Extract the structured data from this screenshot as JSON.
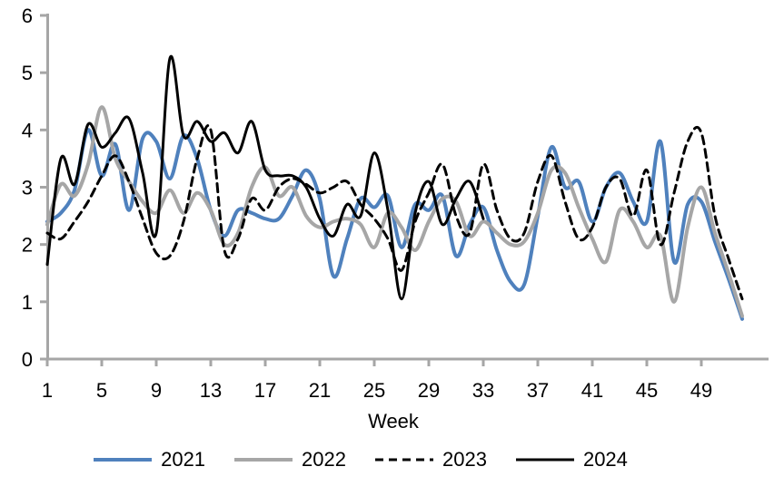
{
  "chart_data": {
    "type": "line",
    "title": "",
    "xlabel": "Week",
    "ylabel": "",
    "xlim": [
      1,
      52
    ],
    "ylim": [
      0,
      6
    ],
    "x_ticks": [
      1,
      5,
      9,
      13,
      17,
      21,
      25,
      29,
      33,
      37,
      41,
      45,
      49
    ],
    "y_ticks": [
      0,
      1,
      2,
      3,
      4,
      5,
      6
    ],
    "grid": false,
    "legend_position": "bottom",
    "axis_color": "#A6A6A6",
    "text_color": "#000000",
    "x": [
      1,
      2,
      3,
      4,
      5,
      6,
      7,
      8,
      9,
      10,
      11,
      12,
      13,
      14,
      15,
      16,
      17,
      18,
      19,
      20,
      21,
      22,
      23,
      24,
      25,
      26,
      27,
      28,
      29,
      30,
      31,
      32,
      33,
      34,
      35,
      36,
      37,
      38,
      39,
      40,
      41,
      42,
      43,
      44,
      45,
      46,
      47,
      48,
      49,
      50,
      51,
      52
    ],
    "series": [
      {
        "name": "2021",
        "color": "#4F81BD",
        "style": "solid",
        "thickness": 4,
        "values": [
          2.4,
          2.55,
          2.95,
          4.0,
          3.2,
          3.75,
          2.6,
          3.85,
          3.8,
          3.15,
          3.9,
          3.5,
          2.6,
          2.15,
          2.6,
          2.55,
          2.45,
          2.45,
          2.85,
          3.3,
          2.8,
          1.45,
          2.1,
          2.8,
          2.65,
          2.85,
          1.95,
          2.7,
          2.6,
          2.85,
          1.8,
          2.35,
          2.65,
          1.9,
          1.35,
          1.3,
          2.5,
          3.7,
          3.0,
          3.1,
          2.4,
          3.0,
          3.25,
          2.75,
          2.4,
          3.8,
          1.7,
          2.7,
          2.75,
          2.05,
          1.4,
          0.7
        ]
      },
      {
        "name": "2022",
        "color": "#A6A6A6",
        "style": "solid",
        "thickness": 4,
        "values": [
          2.35,
          3.05,
          2.85,
          3.4,
          4.4,
          3.5,
          3.1,
          2.75,
          2.55,
          2.95,
          2.55,
          2.9,
          2.6,
          2.0,
          2.2,
          3.0,
          3.35,
          2.85,
          3.0,
          2.5,
          2.3,
          2.4,
          2.45,
          2.35,
          1.95,
          2.55,
          2.3,
          1.9,
          2.4,
          2.8,
          2.75,
          2.15,
          2.4,
          2.2,
          2.0,
          2.05,
          2.55,
          3.3,
          3.25,
          2.65,
          2.1,
          1.7,
          2.6,
          2.4,
          1.95,
          2.15,
          1.0,
          2.3,
          3.0,
          2.2,
          1.5,
          0.75
        ]
      },
      {
        "name": "2023",
        "color": "#000000",
        "style": "dashed",
        "thickness": 3,
        "values": [
          2.2,
          2.1,
          2.4,
          2.75,
          3.2,
          3.55,
          3.1,
          2.45,
          1.85,
          1.8,
          2.4,
          3.5,
          4.0,
          1.9,
          2.1,
          2.8,
          2.6,
          3.0,
          3.15,
          3.05,
          2.9,
          3.0,
          3.1,
          2.7,
          2.45,
          2.1,
          1.55,
          2.4,
          2.9,
          3.4,
          2.5,
          2.2,
          3.4,
          2.6,
          2.1,
          2.2,
          3.1,
          3.55,
          2.75,
          2.1,
          2.3,
          3.0,
          3.15,
          2.5,
          3.3,
          2.0,
          2.9,
          3.8,
          3.95,
          2.5,
          1.75,
          1.05
        ]
      },
      {
        "name": "2024",
        "color": "#000000",
        "style": "solid",
        "thickness": 3,
        "values": [
          1.65,
          3.5,
          3.05,
          4.1,
          3.7,
          3.95,
          4.2,
          3.25,
          2.2,
          5.25,
          3.9,
          4.15,
          3.8,
          3.95,
          3.6,
          4.15,
          3.3,
          3.2,
          3.2,
          3.0,
          2.45,
          2.15,
          2.7,
          2.5,
          3.6,
          2.6,
          1.05,
          2.55,
          3.1,
          2.35,
          2.8,
          3.1,
          2.45
        ]
      }
    ]
  }
}
